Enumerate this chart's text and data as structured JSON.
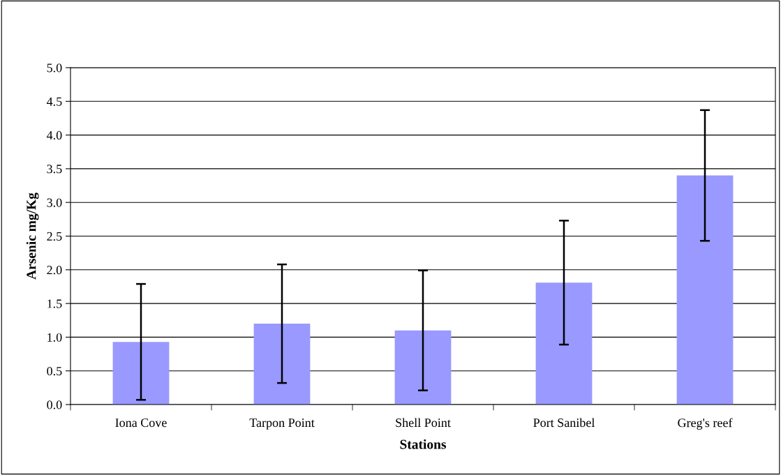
{
  "chart_data": {
    "type": "bar",
    "xlabel": "Stations",
    "ylabel": "Arsenic mg/Kg",
    "categories": [
      "Iona Cove",
      "Tarpon Point",
      "Shell Point",
      "Port Sanibel",
      "Greg's reef"
    ],
    "values": [
      0.93,
      1.2,
      1.1,
      1.81,
      3.4
    ],
    "errors": [
      0.86,
      0.88,
      0.89,
      0.92,
      0.97
    ],
    "color": "#9999ff",
    "ylim": [
      0,
      5
    ],
    "yticks": [
      {
        "value": 0,
        "label": "0.0"
      },
      {
        "value": 0.5,
        "label": "0.5"
      },
      {
        "value": 1,
        "label": "1.0"
      },
      {
        "value": 1.5,
        "label": "1.5"
      },
      {
        "value": 2,
        "label": "2.0"
      },
      {
        "value": 2.5,
        "label": "2.5"
      },
      {
        "value": 3,
        "label": "3.0"
      },
      {
        "value": 3.5,
        "label": "3.5"
      },
      {
        "value": 4,
        "label": "4.0"
      },
      {
        "value": 4.5,
        "label": "4.5"
      },
      {
        "value": 5,
        "label": "5.0"
      }
    ],
    "grid": "y",
    "legend": false
  }
}
